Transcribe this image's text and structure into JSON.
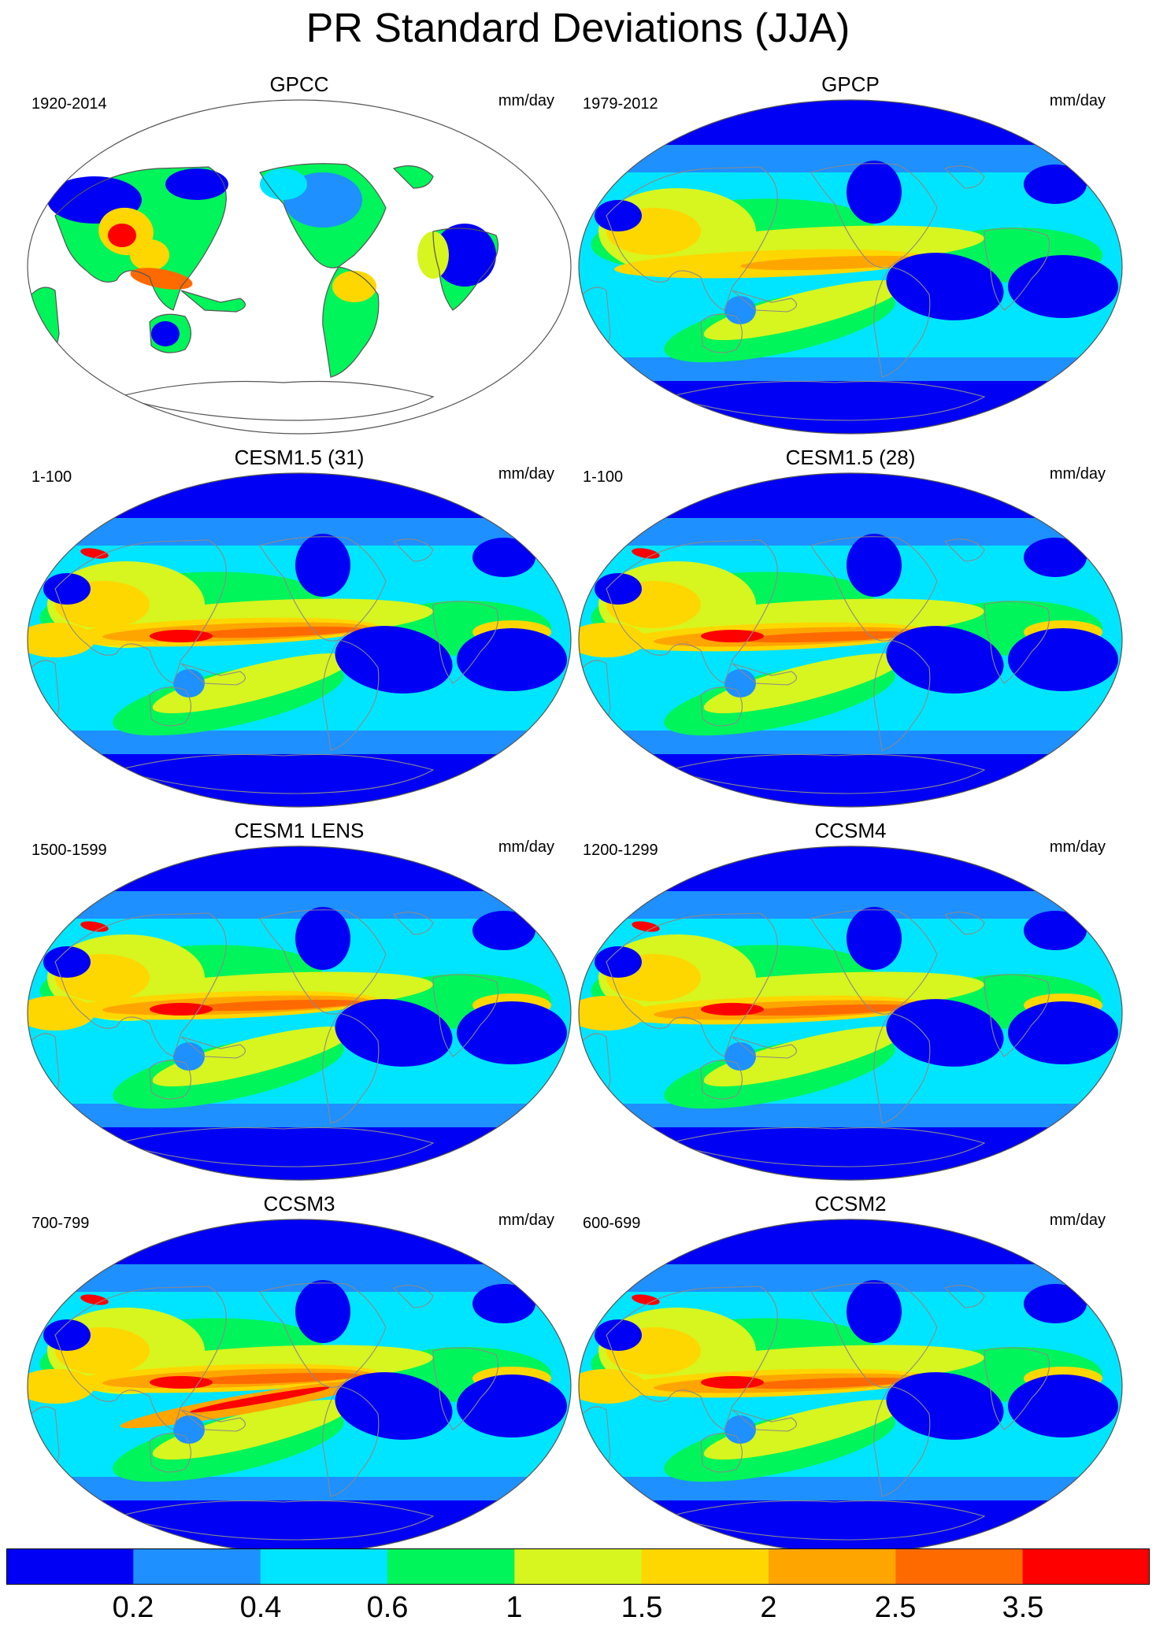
{
  "title": "PR Standard Deviations (JJA)",
  "panels": [
    {
      "name": "GPCC",
      "period": "1920-2014",
      "units": "mm/day",
      "variant": "land"
    },
    {
      "name": "GPCP",
      "period": "1979-2012",
      "units": "mm/day",
      "variant": "obs"
    },
    {
      "name": "CESM1.5 (31)",
      "period": "1-100",
      "units": "mm/day",
      "variant": "model"
    },
    {
      "name": "CESM1.5 (28)",
      "period": "1-100",
      "units": "mm/day",
      "variant": "model"
    },
    {
      "name": "CESM1 LENS",
      "period": "1500-1599",
      "units": "mm/day",
      "variant": "model"
    },
    {
      "name": "CCSM4",
      "period": "1200-1299",
      "units": "mm/day",
      "variant": "model"
    },
    {
      "name": "CCSM3",
      "period": "700-799",
      "units": "mm/day",
      "variant": "double"
    },
    {
      "name": "CCSM2",
      "period": "600-699",
      "units": "mm/day",
      "variant": "model"
    }
  ],
  "colorbar": {
    "colors": [
      "#0000f5",
      "#1e90ff",
      "#00e5ff",
      "#00f55a",
      "#d7f51e",
      "#ffd700",
      "#ffa500",
      "#ff6a00",
      "#ff0000"
    ],
    "labels": [
      "0.2",
      "0.4",
      "0.6",
      "1",
      "1.5",
      "2",
      "2.5",
      "3.5"
    ]
  },
  "colors": {
    "land_outline": "#8a8a8a",
    "map_border": "#555555"
  }
}
